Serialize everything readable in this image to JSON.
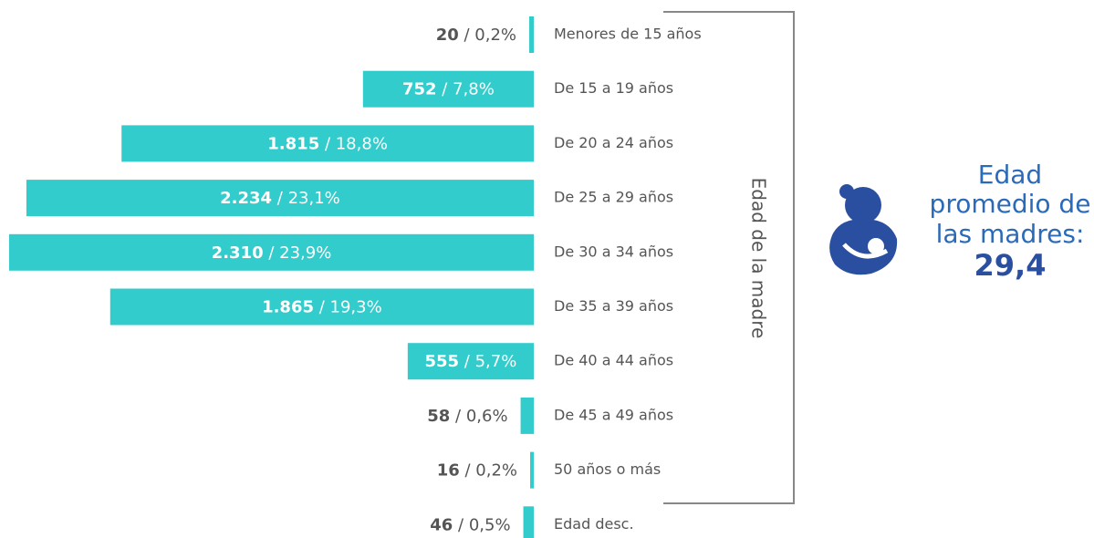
{
  "chart_data": {
    "type": "bar",
    "categories": [
      "Menores de 15 años",
      "De 15 a 19 años",
      "De 20 a 24 años",
      "De 25 a 29 años",
      "De 30 a 34 años",
      "De 35 a 39 años",
      "De 40 a 44 años",
      "De 45 a 49 años",
      "50 años o más",
      "Edad desc."
    ],
    "values": [
      20,
      752,
      1815,
      2234,
      2310,
      1865,
      555,
      58,
      16,
      46
    ],
    "value_labels": [
      "20",
      "752",
      "1.815",
      "2.234",
      "2.310",
      "1.865",
      "555",
      "58",
      "16",
      "46"
    ],
    "percentage_labels": [
      "0,2%",
      "7,8%",
      "18,8%",
      "23,1%",
      "23,9%",
      "19,3%",
      "5,7%",
      "0,6%",
      "0,2%",
      "0,5%"
    ],
    "separator": " / ",
    "color": "#33cccc",
    "axis_label": "Edad de la madre",
    "summary": {
      "label_lines": [
        "Edad",
        "promedio de",
        "las madres:"
      ],
      "value_label": "29,4"
    }
  }
}
